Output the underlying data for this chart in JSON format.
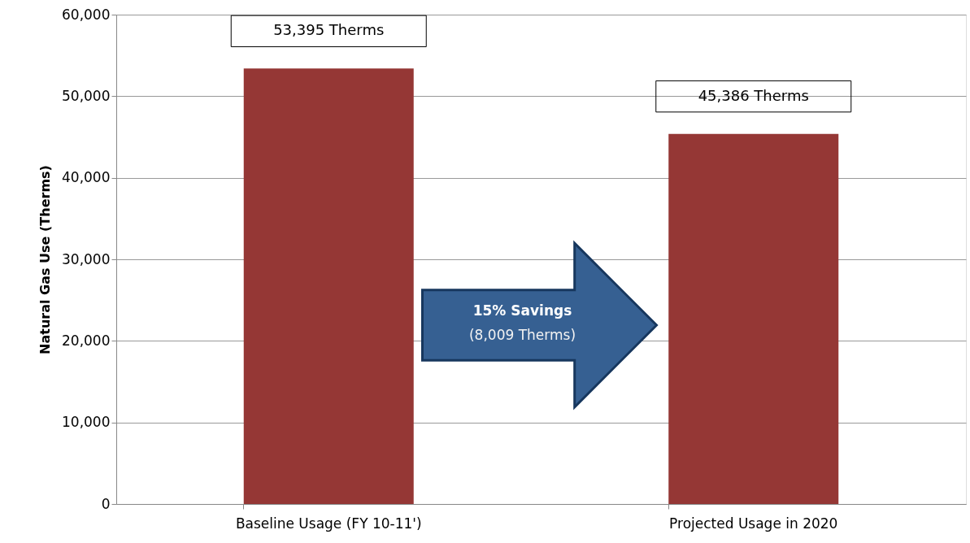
{
  "chart_data": {
    "type": "bar",
    "ylabel": "Natural Gas Use (Therms)",
    "categories": [
      "Baseline Usage (FY 10-11')",
      "Projected Usage in 2020"
    ],
    "values": [
      53395,
      45386
    ],
    "value_labels": [
      "53,395 Therms",
      "45,386 Therms"
    ],
    "color": "#953735",
    "ylim": [
      0,
      60000
    ],
    "yticks": [
      {
        "value": 0,
        "label": "0"
      },
      {
        "value": 10000,
        "label": "10,000"
      },
      {
        "value": 20000,
        "label": "20,000"
      },
      {
        "value": 30000,
        "label": "30,000"
      },
      {
        "value": 40000,
        "label": "40,000"
      },
      {
        "value": 50000,
        "label": "50,000"
      },
      {
        "value": 60000,
        "label": "60,000"
      }
    ],
    "grid": "y",
    "annotations": [
      "15% Savings",
      "(8,009 Therms)"
    ]
  }
}
